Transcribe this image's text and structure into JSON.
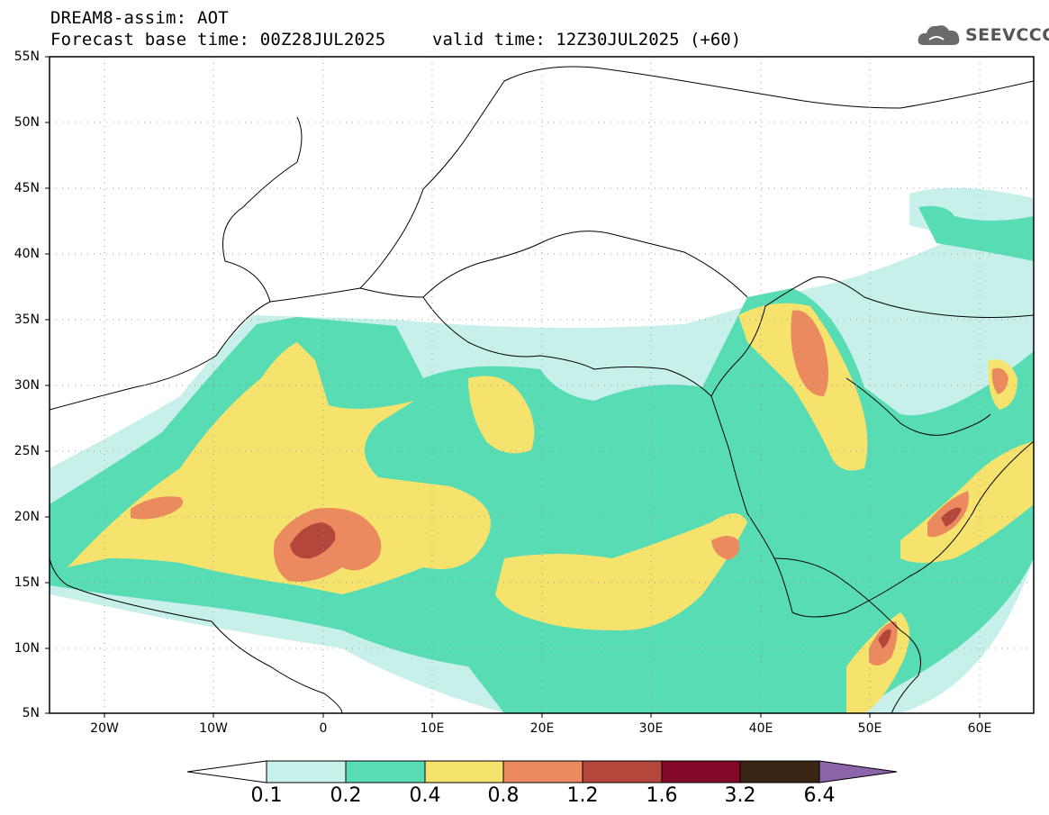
{
  "header": {
    "title": "DREAM8-assim: AOT",
    "base_time": "Forecast base time: 00Z28JUL2025",
    "valid_time": "valid time: 12Z30JUL2025 (+60)"
  },
  "logo": {
    "text": "SEEVCCC",
    "icon": "cloud-icon"
  },
  "map": {
    "projection": "lat-lon",
    "lon_range": [
      -25,
      65
    ],
    "lat_range": [
      5,
      55
    ],
    "grid": true,
    "lat_ticks": [
      {
        "value": 55,
        "label": "55N"
      },
      {
        "value": 50,
        "label": "50N"
      },
      {
        "value": 45,
        "label": "45N"
      },
      {
        "value": 40,
        "label": "40N"
      },
      {
        "value": 35,
        "label": "35N"
      },
      {
        "value": 30,
        "label": "30N"
      },
      {
        "value": 25,
        "label": "25N"
      },
      {
        "value": 20,
        "label": "20N"
      },
      {
        "value": 15,
        "label": "15N"
      },
      {
        "value": 10,
        "label": "10N"
      },
      {
        "value": 5,
        "label": "5N"
      }
    ],
    "lon_ticks": [
      {
        "value": -20,
        "label": "20W"
      },
      {
        "value": -10,
        "label": "10W"
      },
      {
        "value": 0,
        "label": "0"
      },
      {
        "value": 10,
        "label": "10E"
      },
      {
        "value": 20,
        "label": "20E"
      },
      {
        "value": 30,
        "label": "30E"
      },
      {
        "value": 40,
        "label": "40E"
      },
      {
        "value": 50,
        "label": "50E"
      },
      {
        "value": 60,
        "label": "60E"
      }
    ]
  },
  "colorbar": {
    "levels": [
      "0.1",
      "0.2",
      "0.4",
      "0.8",
      "1.2",
      "1.6",
      "3.2",
      "6.4"
    ],
    "colors": [
      "#ffffff",
      "#c7f0ea",
      "#58dcb4",
      "#f5e36e",
      "#eb8a5e",
      "#b4463c",
      "#820a28",
      "#3a2414",
      "#8c64aa"
    ]
  }
}
